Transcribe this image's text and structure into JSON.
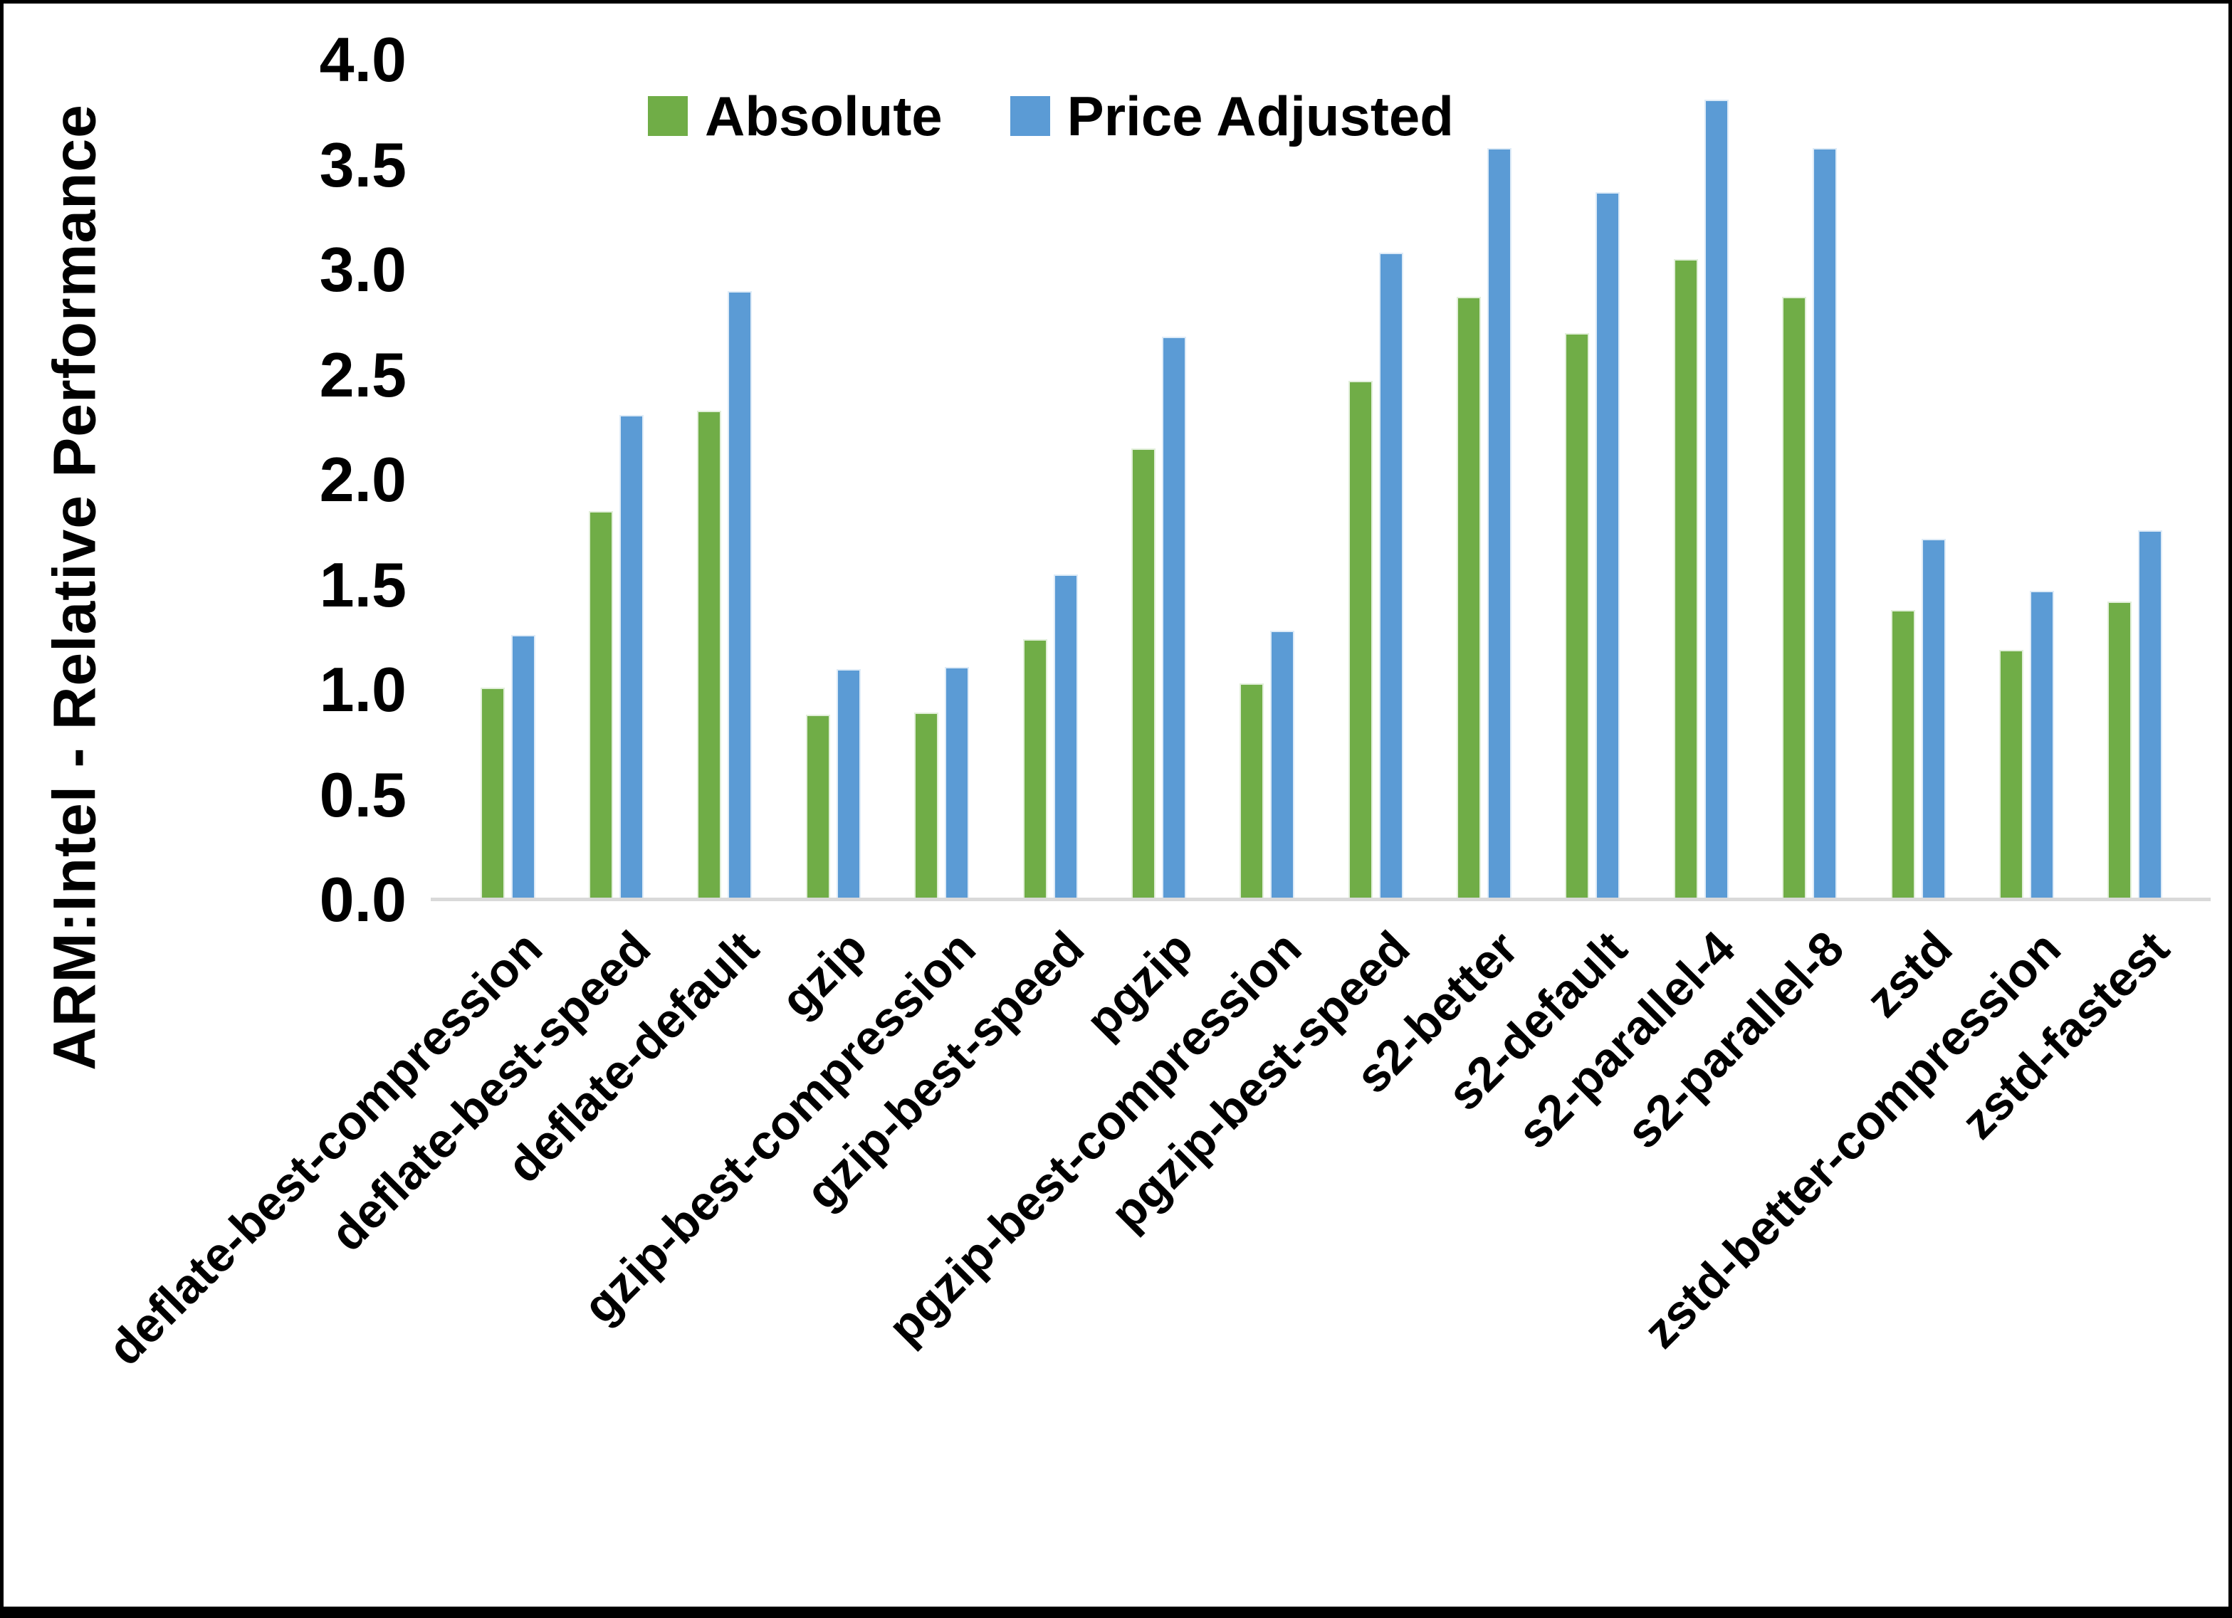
{
  "chart_data": {
    "type": "bar",
    "title": "",
    "ylabel": "ARM:Intel - Relative Performance",
    "xlabel": "",
    "ylim": [
      0.0,
      4.0
    ],
    "ytick_step": 0.5,
    "grid": false,
    "legend_position": "top-center",
    "categories": [
      "deflate-best-compression",
      "deflate-best-speed",
      "deflate-default",
      "gzip",
      "gzip-best-compression",
      "gzip-best-speed",
      "pgzip",
      "pgzip-best-compression",
      "pgzip-best-speed",
      "s2-better",
      "s2-default",
      "s2-parallel-4",
      "s2-parallel-8",
      "zstd",
      "zstd-better-compression",
      "zstd-fastest"
    ],
    "series": [
      {
        "name": "Absolute",
        "color": "#70AD47",
        "values": [
          1.01,
          1.85,
          2.33,
          0.88,
          0.89,
          1.24,
          2.15,
          1.03,
          2.47,
          2.87,
          2.7,
          3.05,
          2.87,
          1.38,
          1.19,
          1.42
        ]
      },
      {
        "name": "Price Adjusted",
        "color": "#5B9BD5",
        "values": [
          1.26,
          2.31,
          2.9,
          1.1,
          1.11,
          1.55,
          2.68,
          1.28,
          3.08,
          3.58,
          3.37,
          3.81,
          3.58,
          1.72,
          1.47,
          1.76
        ]
      }
    ],
    "ytick_labels": [
      "0.0",
      "0.5",
      "1.0",
      "1.5",
      "2.0",
      "2.5",
      "3.0",
      "3.5",
      "4.0"
    ],
    "axis_line_color": "#D9D9D9",
    "text_color": "#000000"
  }
}
